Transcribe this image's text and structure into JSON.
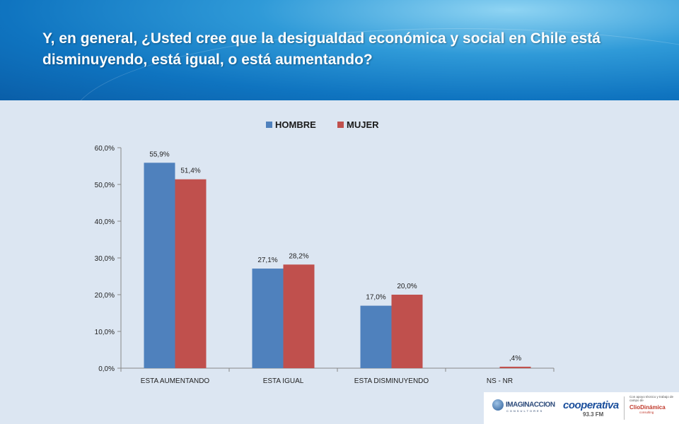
{
  "header": {
    "title": "Y, en general, ¿Usted cree que la desigualdad económica y social en Chile está disminuyendo, está igual, o está aumentando?"
  },
  "colors": {
    "hombre": "#4f81bd",
    "mujer": "#c0504d"
  },
  "chart_data": {
    "type": "bar",
    "title": "",
    "xlabel": "",
    "ylabel": "",
    "ylim": [
      0,
      60
    ],
    "yticks": [
      "0,0%",
      "10,0%",
      "20,0%",
      "30,0%",
      "40,0%",
      "50,0%",
      "60,0%"
    ],
    "yticks_values": [
      0,
      10,
      20,
      30,
      40,
      50,
      60
    ],
    "legend": "top",
    "grid": false,
    "categories": [
      "ESTA  AUMENTANDO",
      "ESTA  IGUAL",
      "ESTA  DISMINUYENDO",
      "NS - NR"
    ],
    "series": [
      {
        "name": "HOMBRE",
        "values": [
          55.9,
          27.1,
          17.0,
          null
        ],
        "labels": [
          "55,9%",
          "27,1%",
          "17,0%",
          ""
        ]
      },
      {
        "name": "MUJER",
        "values": [
          51.4,
          28.2,
          20.0,
          0.4
        ],
        "labels": [
          "51,4%",
          "28,2%",
          "20,0%",
          ",4%"
        ]
      }
    ]
  },
  "footer": {
    "logo1": "IMAGINACCION",
    "logo1_sub": "CONSULTORES",
    "logo2": "cooperativa",
    "logo2_sub": "93.3 FM",
    "logo3_sup": "Con apoyo técnico y trabajo de campo de",
    "logo3": "ClioDinámica",
    "logo3_sub": "consulting"
  }
}
